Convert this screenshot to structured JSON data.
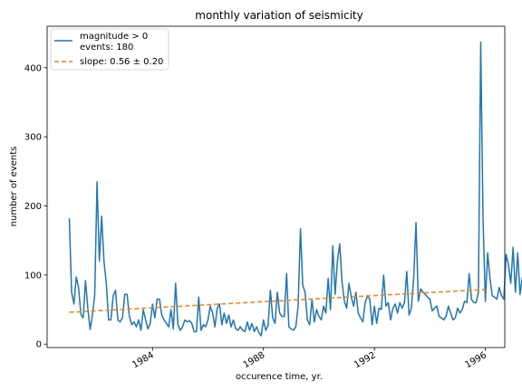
{
  "chart_data": {
    "type": "line",
    "title": "monthly variation of seismicity",
    "xlabel": "occurence time, yr.",
    "ylabel": "number of events",
    "xlim": [
      1980.2,
      1996.7
    ],
    "ylim": [
      -5,
      460
    ],
    "x_ticks": [
      1984,
      1988,
      1992,
      1996
    ],
    "x_tick_labels": [
      "1984",
      "1988",
      "1992",
      "1996"
    ],
    "y_ticks": [
      0,
      100,
      200,
      300,
      400
    ],
    "y_tick_labels": [
      "0",
      "100",
      "200",
      "300",
      "400"
    ],
    "grid": false,
    "legend_position": "top-left",
    "series": [
      {
        "name": "magnitude > 0\nevents: 180",
        "color": "#1f77b4",
        "style": "solid",
        "x_start": 1981.0,
        "x_step": 0.08333,
        "values": [
          182,
          75,
          58,
          97,
          82,
          43,
          38,
          92,
          52,
          21,
          42,
          72,
          235,
          120,
          185,
          120,
          88,
          35,
          35,
          70,
          78,
          35,
          32,
          38,
          72,
          72,
          40,
          28,
          32,
          25,
          35,
          20,
          50,
          35,
          22,
          30,
          58,
          38,
          65,
          65,
          42,
          35,
          30,
          25,
          50,
          22,
          88,
          28,
          20,
          25,
          35,
          32,
          34,
          30,
          18,
          18,
          68,
          20,
          28,
          25,
          35,
          55,
          45,
          25,
          52,
          58,
          28,
          45,
          30,
          42,
          25,
          35,
          22,
          20,
          25,
          20,
          18,
          32,
          20,
          30,
          18,
          25,
          17,
          12,
          35,
          20,
          27,
          78,
          38,
          30,
          75,
          45,
          40,
          40,
          102,
          25,
          22,
          20,
          25,
          55,
          167,
          85,
          75,
          35,
          28,
          65,
          32,
          50,
          40,
          35,
          55,
          45,
          95,
          50,
          142,
          72,
          120,
          145,
          90,
          62,
          52,
          88,
          68,
          55,
          75,
          45,
          38,
          32,
          60,
          70,
          65,
          28,
          55,
          30,
          52,
          50,
          100,
          55,
          60,
          35,
          52,
          58,
          45,
          60,
          52,
          60,
          105,
          42,
          52,
          95,
          176,
          62,
          80,
          75,
          72,
          68,
          65,
          48,
          52,
          55,
          40,
          38,
          35,
          40,
          55,
          45,
          35,
          38,
          52,
          45,
          50,
          62,
          60,
          102,
          65,
          60,
          60,
          75,
          437,
          180,
          62,
          132,
          95,
          70,
          68,
          65,
          82,
          70,
          65,
          130,
          115,
          88,
          140,
          75,
          132,
          72,
          97
        ]
      },
      {
        "name": "slope: 0.56 ± 0.20",
        "color": "#ff7f0e",
        "style": "dashed",
        "x": [
          1981.0,
          1996.0
        ],
        "values": [
          46,
          79
        ]
      }
    ]
  }
}
